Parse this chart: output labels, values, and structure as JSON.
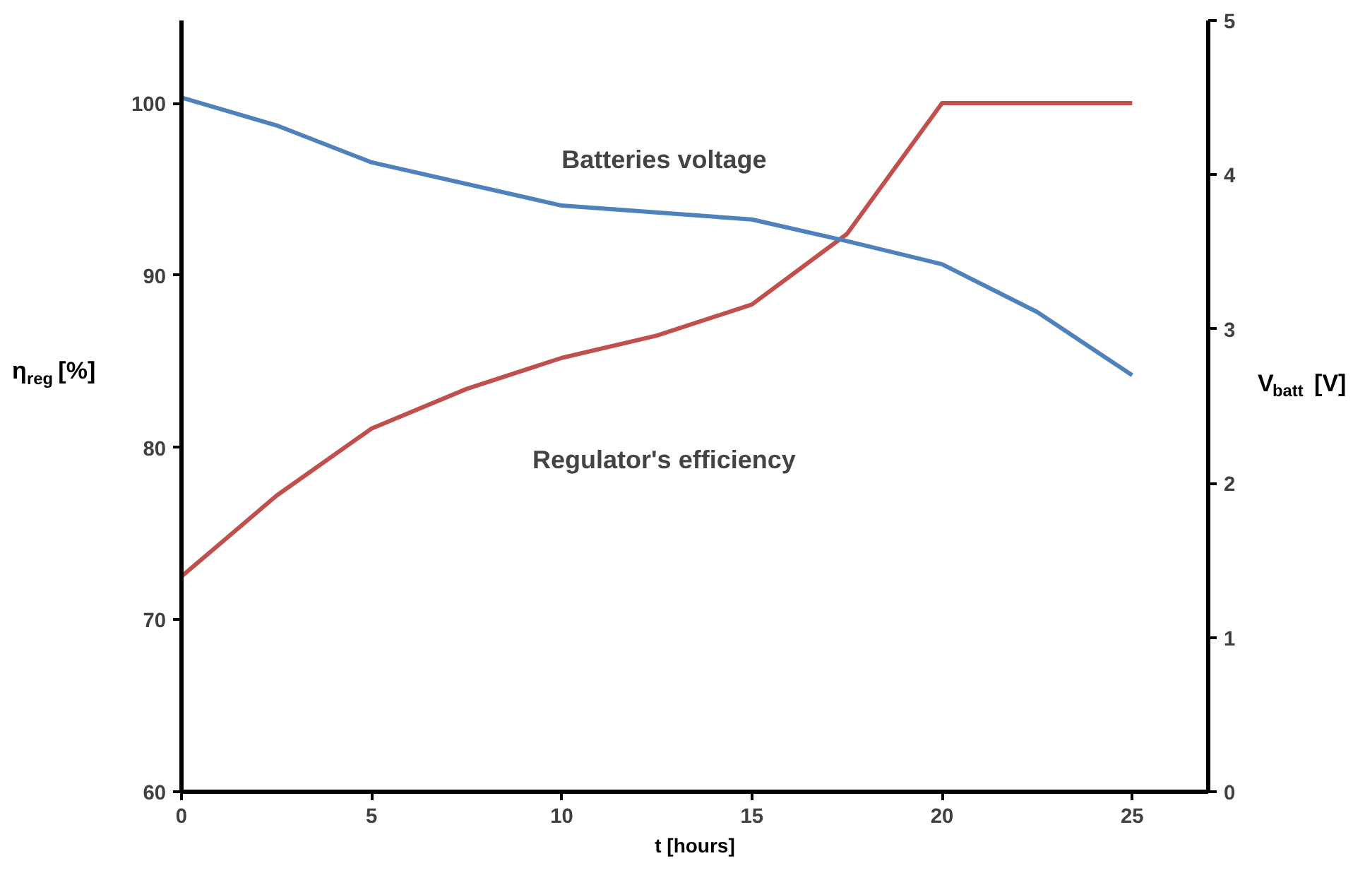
{
  "chart_data": {
    "type": "line",
    "xlabel": "t [hours]",
    "ylabel": "η$_{reg}$ [%]",
    "y2label": "V$_{batt}$ [V]",
    "xlim": [
      0,
      27
    ],
    "xticks": [
      0,
      5,
      10,
      15,
      20,
      25
    ],
    "ylim": [
      60,
      104.8
    ],
    "yticks": [
      60,
      70,
      80,
      90,
      100
    ],
    "y2lim": [
      0,
      5
    ],
    "y2ticks": [
      0,
      1,
      2,
      3,
      4,
      5
    ],
    "grid": false,
    "marker": "none",
    "line_style": "solid",
    "series": [
      {
        "color": "#c0504d",
        "x": [
          0,
          2.5,
          5,
          7.5,
          10,
          12.5,
          15,
          17.5,
          20,
          25
        ],
        "values": [
          72.5,
          77.2,
          81.1,
          83.4,
          85.2,
          86.5,
          88.3,
          92.4,
          100,
          100
        ]
      },
      {
        "color": "#4f81bd",
        "axis": "y2",
        "x": [
          0,
          2.5,
          5,
          10,
          15,
          17.5,
          20,
          22.5,
          25
        ],
        "values": [
          4.5,
          4.32,
          4.08,
          3.8,
          3.71,
          3.57,
          3.42,
          3.11,
          2.7
        ]
      }
    ],
    "annotations": [
      "Batteries voltage",
      "Regulator's efficiency"
    ]
  }
}
